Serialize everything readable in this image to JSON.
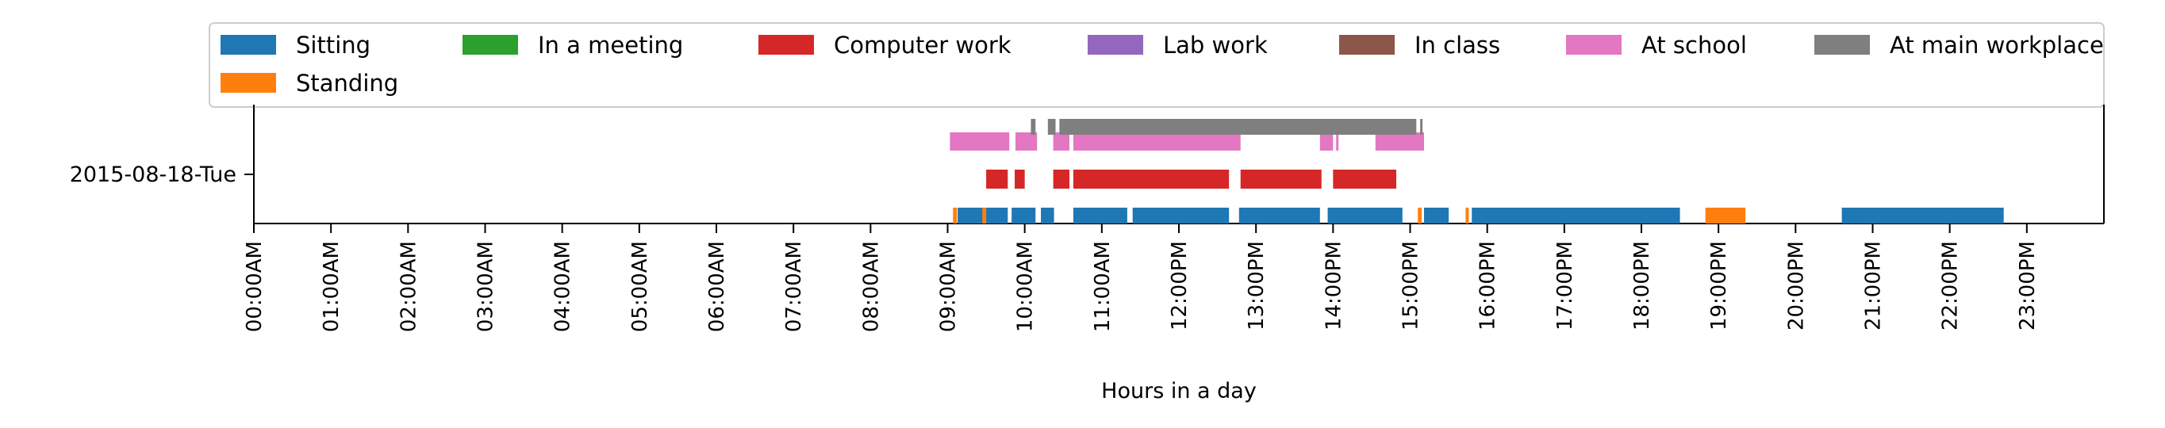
{
  "chart_data": {
    "type": "timeline",
    "title": "",
    "xlabel": "Hours in a day",
    "ylabel": "",
    "xlim": [
      0,
      24
    ],
    "grid": false,
    "legend_placement": "top",
    "row_label": "2015-08-18-Tue",
    "x_ticks": [
      {
        "hour": 0,
        "label": "00:00AM"
      },
      {
        "hour": 1,
        "label": "01:00AM"
      },
      {
        "hour": 2,
        "label": "02:00AM"
      },
      {
        "hour": 3,
        "label": "03:00AM"
      },
      {
        "hour": 4,
        "label": "04:00AM"
      },
      {
        "hour": 5,
        "label": "05:00AM"
      },
      {
        "hour": 6,
        "label": "06:00AM"
      },
      {
        "hour": 7,
        "label": "07:00AM"
      },
      {
        "hour": 8,
        "label": "08:00AM"
      },
      {
        "hour": 9,
        "label": "09:00AM"
      },
      {
        "hour": 10,
        "label": "10:00AM"
      },
      {
        "hour": 11,
        "label": "11:00AM"
      },
      {
        "hour": 12,
        "label": "12:00PM"
      },
      {
        "hour": 13,
        "label": "13:00PM"
      },
      {
        "hour": 14,
        "label": "14:00PM"
      },
      {
        "hour": 15,
        "label": "15:00PM"
      },
      {
        "hour": 16,
        "label": "16:00PM"
      },
      {
        "hour": 17,
        "label": "17:00PM"
      },
      {
        "hour": 18,
        "label": "18:00PM"
      },
      {
        "hour": 19,
        "label": "19:00PM"
      },
      {
        "hour": 20,
        "label": "20:00PM"
      },
      {
        "hour": 21,
        "label": "21:00PM"
      },
      {
        "hour": 22,
        "label": "22:00PM"
      },
      {
        "hour": 23,
        "label": "23:00PM"
      }
    ],
    "series": [
      {
        "name": "Sitting",
        "color": "#1f77b4",
        "lane": 0,
        "intervals": [
          [
            9.13,
            9.78
          ],
          [
            9.83,
            10.14
          ],
          [
            10.21,
            10.38
          ],
          [
            10.63,
            11.33
          ],
          [
            11.4,
            12.65
          ],
          [
            12.78,
            13.83
          ],
          [
            13.93,
            14.9
          ],
          [
            15.18,
            15.5
          ],
          [
            15.8,
            18.5
          ],
          [
            20.6,
            22.7
          ]
        ]
      },
      {
        "name": "Standing",
        "color": "#ff7f0e",
        "lane": 0,
        "intervals": [
          [
            9.07,
            9.12
          ],
          [
            9.45,
            9.5
          ],
          [
            15.1,
            15.15
          ],
          [
            15.72,
            15.76
          ],
          [
            18.83,
            19.35
          ]
        ]
      },
      {
        "name": "In a meeting",
        "color": "#2ca02c",
        "lane": 1,
        "intervals": []
      },
      {
        "name": "Computer work",
        "color": "#d62728",
        "lane": 1,
        "intervals": [
          [
            9.5,
            9.78
          ],
          [
            9.87,
            10.0
          ],
          [
            10.37,
            10.58
          ],
          [
            10.63,
            12.65
          ],
          [
            12.8,
            13.85
          ],
          [
            14.0,
            14.82
          ]
        ]
      },
      {
        "name": "Lab work",
        "color": "#9467bd",
        "lane": 1,
        "intervals": []
      },
      {
        "name": "In class",
        "color": "#8c564b",
        "lane": 2,
        "intervals": []
      },
      {
        "name": "At school",
        "color": "#e377c2",
        "lane": 2,
        "intervals": [
          [
            9.03,
            9.8
          ],
          [
            9.88,
            10.16
          ],
          [
            10.37,
            10.58
          ],
          [
            10.63,
            12.8
          ],
          [
            13.83,
            14.0
          ],
          [
            14.04,
            14.07
          ],
          [
            14.55,
            15.18
          ]
        ]
      },
      {
        "name": "At main workplace",
        "color": "#7f7f7f",
        "lane": 3,
        "intervals": [
          [
            10.08,
            10.14
          ],
          [
            10.3,
            10.4
          ],
          [
            10.45,
            15.08
          ],
          [
            15.13,
            15.16
          ]
        ]
      }
    ]
  }
}
